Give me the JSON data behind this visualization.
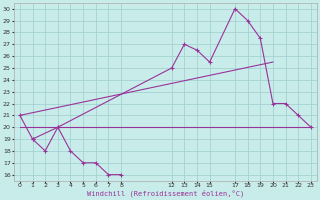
{
  "background_color": "#c8ecea",
  "grid_color": "#9ecece",
  "line_color": "#993399",
  "xlabel": "Windchill (Refroidissement éolien,°C)",
  "xlim": [
    -0.5,
    23.5
  ],
  "ylim": [
    15.5,
    30.5
  ],
  "xticks": [
    0,
    1,
    2,
    3,
    4,
    5,
    6,
    7,
    8,
    12,
    13,
    14,
    15,
    17,
    18,
    19,
    20,
    21,
    22,
    23
  ],
  "yticks": [
    16,
    17,
    18,
    19,
    20,
    21,
    22,
    23,
    24,
    25,
    26,
    27,
    28,
    29,
    30
  ],
  "line1_x": [
    0,
    1,
    2,
    3,
    4,
    5,
    6,
    7,
    8
  ],
  "line1_y": [
    21,
    19,
    18,
    20,
    18,
    17,
    17,
    16,
    16
  ],
  "line2_x": [
    1,
    3,
    12,
    13,
    14,
    15,
    17,
    18,
    19,
    20,
    21,
    22,
    23
  ],
  "line2_y": [
    19,
    20,
    25,
    27,
    26.5,
    25.5,
    30,
    29,
    27.5,
    22,
    22,
    21,
    20
  ],
  "line3_x": [
    0,
    23
  ],
  "line3_y": [
    20,
    20
  ],
  "line4_x": [
    0,
    20
  ],
  "line4_y": [
    21,
    25.5
  ]
}
